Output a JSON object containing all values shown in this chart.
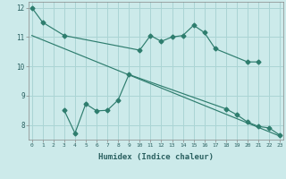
{
  "xlabel": "Humidex (Indice chaleur)",
  "bg_color": "#cceaea",
  "grid_color": "#aad4d4",
  "line_color": "#2e7d6e",
  "line1": {
    "x": [
      0,
      1,
      3,
      10,
      11,
      12,
      13,
      14,
      15,
      16,
      17,
      20,
      21
    ],
    "y": [
      12.0,
      11.5,
      11.05,
      10.55,
      11.05,
      10.85,
      11.0,
      11.05,
      11.4,
      11.15,
      10.6,
      10.15,
      10.15
    ]
  },
  "line2": {
    "x": [
      0,
      23
    ],
    "y": [
      11.05,
      7.62
    ]
  },
  "line3": {
    "x": [
      3,
      4,
      5,
      6,
      7,
      8,
      9,
      18,
      19,
      20,
      21,
      22,
      23
    ],
    "y": [
      8.5,
      7.72,
      8.72,
      8.48,
      8.5,
      8.85,
      9.72,
      8.55,
      8.35,
      8.1,
      7.95,
      7.9,
      7.65
    ]
  },
  "xlim": [
    0,
    23
  ],
  "ylim": [
    7.5,
    12.2
  ],
  "yticks": [
    8,
    9,
    10,
    11,
    12
  ],
  "xticks": [
    0,
    1,
    2,
    3,
    4,
    5,
    6,
    7,
    8,
    9,
    10,
    11,
    12,
    13,
    14,
    15,
    16,
    17,
    18,
    19,
    20,
    21,
    22,
    23
  ]
}
